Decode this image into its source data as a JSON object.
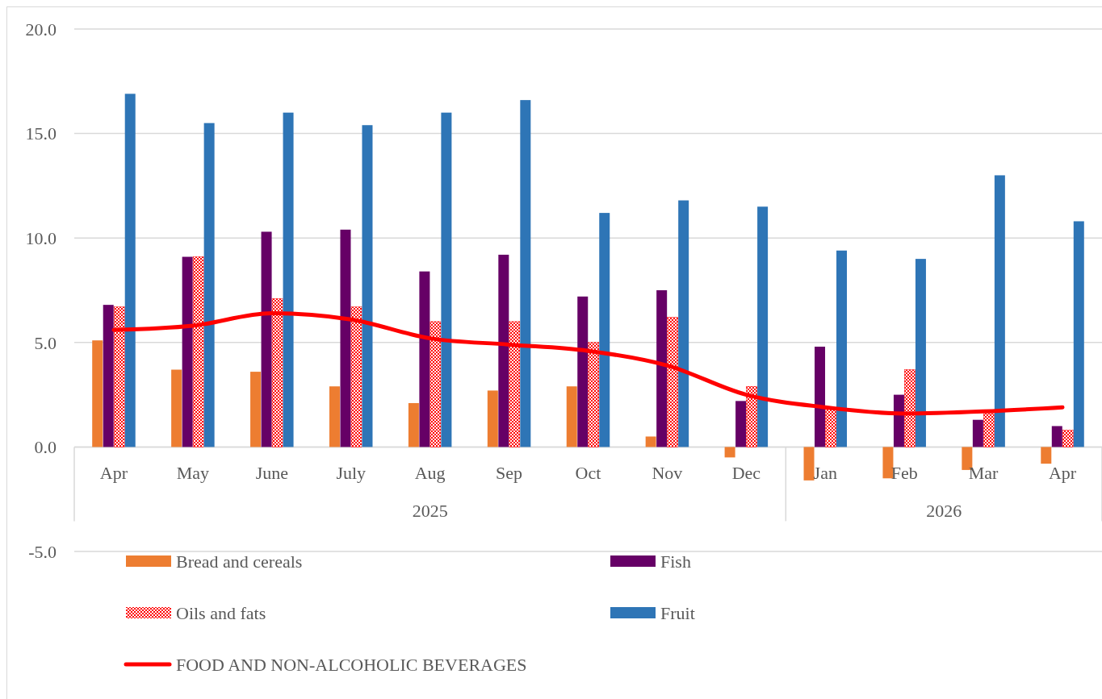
{
  "chart_data": {
    "type": "bar",
    "categories": [
      "Apr",
      "May",
      "June",
      "July",
      "Aug",
      "Sep",
      "Oct",
      "Nov",
      "Dec",
      "Jan",
      "Feb",
      "Mar",
      "Apr"
    ],
    "series": [
      {
        "name": "Bread and cereals",
        "color": "#ed7d31",
        "values": [
          5.1,
          3.7,
          3.6,
          2.9,
          2.1,
          2.7,
          2.9,
          0.5,
          -0.5,
          -1.6,
          -1.5,
          -1.1,
          -0.8
        ]
      },
      {
        "name": "Fish",
        "color": "#660066",
        "values": [
          6.8,
          9.1,
          10.3,
          10.4,
          8.4,
          9.2,
          7.2,
          7.5,
          2.2,
          4.8,
          2.5,
          1.3,
          1.0
        ]
      },
      {
        "name": "Oils and fats",
        "color": "#ff0000",
        "values": [
          6.7,
          9.1,
          7.1,
          6.7,
          6.0,
          6.0,
          5.0,
          6.2,
          2.9,
          1.8,
          3.7,
          1.6,
          0.8
        ]
      },
      {
        "name": "Fruit",
        "color": "#2e75b6",
        "values": [
          16.9,
          15.5,
          16.0,
          15.4,
          16.0,
          16.6,
          11.2,
          11.8,
          11.5,
          9.4,
          9.0,
          13.0,
          10.8
        ]
      },
      {
        "name": "FOOD AND NON-ALCOHOLIC BEVERAGES",
        "type": "line",
        "color": "#ff0000",
        "values": [
          5.6,
          5.8,
          6.4,
          6.1,
          5.2,
          4.9,
          4.6,
          3.9,
          2.5,
          1.9,
          1.6,
          1.7,
          1.9
        ]
      }
    ],
    "ylim": [
      -5,
      20
    ],
    "yticks": [
      {
        "value": -5,
        "label": "-5.0"
      },
      {
        "value": 0,
        "label": "0.0"
      },
      {
        "value": 5,
        "label": "5.0"
      },
      {
        "value": 10,
        "label": "10.0"
      },
      {
        "value": 15,
        "label": "15.0"
      },
      {
        "value": 20,
        "label": "20.0"
      }
    ],
    "grid": "y",
    "legend": "bottom",
    "marker": "none",
    "line_style": "solid",
    "annotations": [
      "2025",
      "2026"
    ]
  }
}
